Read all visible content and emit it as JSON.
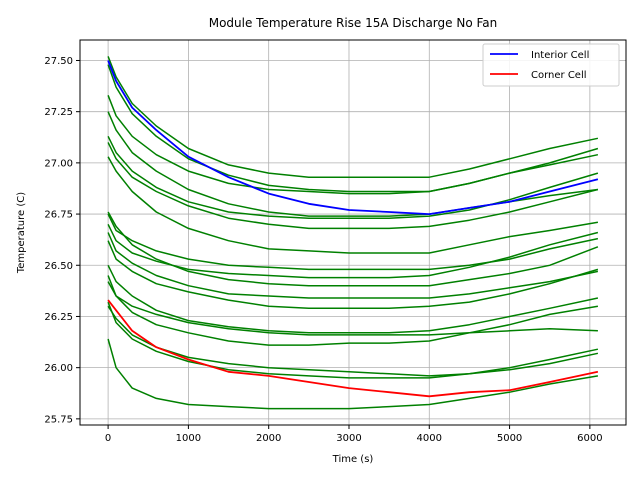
{
  "chart_data": {
    "type": "line",
    "title": "Module Temperature Rise 15A Discharge No Fan",
    "xlabel": "Time (s)",
    "ylabel": "Temperature (C)",
    "xlim": [
      -350,
      6450
    ],
    "ylim": [
      25.72,
      27.6
    ],
    "xticks": [
      0,
      1000,
      2000,
      3000,
      4000,
      5000,
      6000
    ],
    "yticks": [
      25.75,
      26.0,
      26.25,
      26.5,
      26.75,
      27.0,
      27.25,
      27.5
    ],
    "ytick_labels": [
      "25.75",
      "26.00",
      "26.25",
      "26.50",
      "26.75",
      "27.00",
      "27.25",
      "27.50"
    ],
    "grid": true,
    "legend_position": "top-right",
    "x": [
      0,
      100,
      300,
      600,
      1000,
      1500,
      2000,
      2500,
      3000,
      3500,
      4000,
      4500,
      5000,
      5500,
      6100
    ],
    "series": [
      {
        "name": "Interior Cell",
        "color": "#0000ff",
        "values": [
          27.5,
          27.4,
          27.27,
          27.16,
          27.03,
          26.93,
          26.85,
          26.8,
          26.77,
          26.76,
          26.75,
          26.78,
          26.81,
          26.86,
          26.92
        ]
      },
      {
        "name": "Corner Cell",
        "color": "#ff0000",
        "values": [
          26.33,
          26.28,
          26.18,
          26.1,
          26.04,
          25.98,
          25.96,
          25.93,
          25.9,
          25.88,
          25.86,
          25.88,
          25.89,
          25.93,
          25.98
        ]
      },
      {
        "color": "#008000",
        "values": [
          27.52,
          27.42,
          27.29,
          27.18,
          27.07,
          26.99,
          26.95,
          26.93,
          26.93,
          26.93,
          26.93,
          26.97,
          27.02,
          27.07,
          27.12
        ]
      },
      {
        "color": "#008000",
        "values": [
          27.48,
          27.37,
          27.24,
          27.13,
          27.02,
          26.94,
          26.89,
          26.87,
          26.86,
          26.86,
          26.86,
          26.9,
          26.95,
          27.0,
          27.07
        ]
      },
      {
        "color": "#008000",
        "values": [
          27.33,
          27.23,
          27.13,
          27.04,
          26.96,
          26.9,
          26.87,
          26.86,
          26.85,
          26.85,
          26.86,
          26.9,
          26.95,
          26.99,
          27.04
        ]
      },
      {
        "color": "#008000",
        "values": [
          27.25,
          27.16,
          27.05,
          26.96,
          26.87,
          26.8,
          26.76,
          26.74,
          26.74,
          26.74,
          26.75,
          26.78,
          26.81,
          26.84,
          26.87
        ]
      },
      {
        "color": "#008000",
        "values": [
          27.13,
          27.05,
          26.96,
          26.88,
          26.81,
          26.76,
          26.74,
          26.73,
          26.73,
          26.73,
          26.74,
          26.77,
          26.82,
          26.88,
          26.95
        ]
      },
      {
        "color": "#008000",
        "values": [
          27.1,
          27.02,
          26.93,
          26.86,
          26.79,
          26.73,
          26.7,
          26.68,
          26.68,
          26.68,
          26.69,
          26.72,
          26.76,
          26.81,
          26.87
        ]
      },
      {
        "color": "#008000",
        "values": [
          27.03,
          26.96,
          26.86,
          26.76,
          26.68,
          26.62,
          26.58,
          26.57,
          26.56,
          26.56,
          26.56,
          26.6,
          26.64,
          26.67,
          26.71
        ]
      },
      {
        "color": "#008000",
        "values": [
          26.76,
          26.69,
          26.6,
          26.53,
          26.47,
          26.43,
          26.41,
          26.4,
          26.4,
          26.4,
          26.4,
          26.43,
          26.46,
          26.5,
          26.59
        ]
      },
      {
        "color": "#008000",
        "values": [
          26.75,
          26.67,
          26.62,
          26.57,
          26.53,
          26.5,
          26.49,
          26.48,
          26.48,
          26.48,
          26.48,
          26.5,
          26.53,
          26.58,
          26.63
        ]
      },
      {
        "color": "#008000",
        "values": [
          26.7,
          26.62,
          26.56,
          26.52,
          26.48,
          26.46,
          26.45,
          26.44,
          26.44,
          26.44,
          26.45,
          26.49,
          26.54,
          26.6,
          26.66
        ]
      },
      {
        "color": "#008000",
        "values": [
          26.66,
          26.57,
          26.51,
          26.45,
          26.4,
          26.36,
          26.35,
          26.34,
          26.34,
          26.34,
          26.34,
          26.36,
          26.39,
          26.42,
          26.47
        ]
      },
      {
        "color": "#008000",
        "values": [
          26.62,
          26.53,
          26.47,
          26.41,
          26.37,
          26.33,
          26.3,
          26.29,
          26.29,
          26.29,
          26.3,
          26.32,
          26.36,
          26.41,
          26.48
        ]
      },
      {
        "color": "#008000",
        "values": [
          26.5,
          26.42,
          26.35,
          26.28,
          26.23,
          26.2,
          26.18,
          26.17,
          26.17,
          26.17,
          26.18,
          26.21,
          26.25,
          26.29,
          26.34
        ]
      },
      {
        "color": "#008000",
        "values": [
          26.42,
          26.35,
          26.3,
          26.26,
          26.22,
          26.19,
          26.17,
          26.16,
          26.16,
          26.16,
          26.16,
          26.17,
          26.18,
          26.19,
          26.18
        ]
      },
      {
        "color": "#008000",
        "values": [
          26.3,
          26.24,
          26.16,
          26.1,
          26.05,
          26.02,
          26.0,
          25.99,
          25.98,
          25.97,
          25.96,
          25.97,
          25.99,
          26.02,
          26.07
        ]
      },
      {
        "color": "#008000",
        "values": [
          26.14,
          26.0,
          25.9,
          25.85,
          25.82,
          25.81,
          25.8,
          25.8,
          25.8,
          25.81,
          25.82,
          25.85,
          25.88,
          25.92,
          25.96
        ]
      },
      {
        "color": "#008000",
        "values": [
          26.45,
          26.35,
          26.27,
          26.21,
          26.17,
          26.13,
          26.11,
          26.11,
          26.12,
          26.12,
          26.13,
          26.17,
          26.21,
          26.26,
          26.3
        ]
      },
      {
        "color": "#008000",
        "values": [
          26.32,
          26.22,
          26.14,
          26.08,
          26.03,
          25.99,
          25.97,
          25.96,
          25.95,
          25.95,
          25.95,
          25.97,
          26.0,
          26.04,
          26.09
        ]
      }
    ]
  }
}
